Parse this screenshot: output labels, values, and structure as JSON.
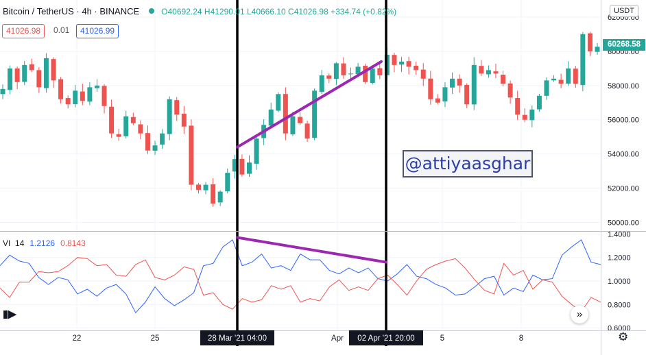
{
  "header": {
    "symbol": "Bitcoin / TetherUS · 4h · BINANCE",
    "open": "O40692.24",
    "high": "H41290.01",
    "low": "L40666.10",
    "close": "C41026.98",
    "change": "+334.74 (+0.82%)"
  },
  "trade": {
    "sell_price": "41026.98",
    "spread": "0.01",
    "buy_price": "41026.99"
  },
  "indicator": {
    "name": "VI",
    "length": "14",
    "vi_plus": "1.2126",
    "vi_minus": "0.8143"
  },
  "currency_label": "USDT",
  "last_price": "60268.58",
  "watermark": "@attiyaasghar",
  "colors": {
    "up": "#26a69a",
    "down": "#ef5350",
    "vi_plus": "#2962ff",
    "vi_minus": "#ef5350",
    "annotation": "#9c27b0",
    "marker": "#000000"
  },
  "chart_data": [
    {
      "type": "candlestick",
      "price_axis": {
        "ticks": [
          "62000.00",
          "60000.00",
          "58000.00",
          "56000.00",
          "54000.00",
          "52000.00",
          "50000.00"
        ],
        "ylim": [
          49500,
          63000
        ]
      },
      "time_axis": {
        "ticks": [
          "22",
          "25",
          "28 Mar '21   04:00",
          "Apr",
          "02 Apr '21   20:00",
          "5",
          "8"
        ]
      },
      "close_path": [
        57800,
        59000,
        58200,
        59200,
        58900,
        57900,
        59600,
        58300,
        57200,
        56900,
        57700,
        57100,
        57900,
        58000,
        56800,
        55200,
        55000,
        56200,
        55800,
        55200,
        54200,
        54500,
        55200,
        57200,
        56300,
        55600,
        52200,
        51900,
        52200,
        51100,
        51800,
        52900,
        53700,
        52800,
        53500,
        54900,
        55700,
        56600,
        57500,
        55200,
        56200,
        55800,
        54900,
        57700,
        58600,
        58400,
        59300,
        58600,
        58700,
        59100,
        58200,
        59000,
        58600,
        59800,
        59200,
        59400,
        59100,
        58900,
        58400,
        57200,
        57000,
        57900,
        58400,
        58000,
        56900,
        59200,
        58700,
        58900,
        58700,
        58100,
        57300,
        56300,
        56000,
        56600,
        57400,
        58300,
        58400,
        58100,
        59000,
        58100,
        61000,
        60000,
        60268
      ],
      "annotations": [
        {
          "type": "trendline",
          "from": [
            "28 Mar '21 04:00",
            54400
          ],
          "to": [
            "02 Apr '21 20:00",
            59400
          ]
        }
      ],
      "markers": [
        "28 Mar '21 04:00",
        "02 Apr '21 20:00"
      ]
    },
    {
      "type": "line",
      "title": "VI 14",
      "y_axis": {
        "ticks": [
          "1.4000",
          "1.2000",
          "1.0000",
          "0.8000",
          "0.6000"
        ],
        "ylim": [
          0.58,
          1.42
        ]
      },
      "series": [
        {
          "name": "VI+",
          "values": [
            1.13,
            1.22,
            1.17,
            1.15,
            1.03,
            0.97,
            1.03,
            1.01,
            0.89,
            0.93,
            0.87,
            0.94,
            0.97,
            0.89,
            0.73,
            0.82,
            0.95,
            0.85,
            0.79,
            0.84,
            0.9,
            1.13,
            1.15,
            1.29,
            1.35,
            1.13,
            1.16,
            1.23,
            1.11,
            1.13,
            1.09,
            1.23,
            1.18,
            1.18,
            1.09,
            1.06,
            1.11,
            1.07,
            1.11,
            1.02,
            1.0,
            1.06,
            1.14,
            1.04,
            1.02,
            0.97,
            0.94,
            0.88,
            0.89,
            0.95,
            1.02,
            1.04,
            0.88,
            0.94,
            0.91,
            1.05,
            1.01,
            1.02,
            1.22,
            1.29,
            1.35,
            1.16,
            1.14
          ]
        },
        {
          "name": "VI-",
          "values": [
            0.94,
            0.86,
            0.99,
            0.99,
            1.08,
            1.07,
            1.08,
            1.13,
            1.2,
            1.19,
            1.13,
            1.14,
            1.05,
            1.04,
            1.14,
            1.18,
            1.03,
            1.01,
            1.05,
            1.12,
            1.1,
            0.88,
            0.9,
            0.8,
            0.76,
            0.85,
            0.82,
            0.84,
            0.96,
            0.93,
            0.96,
            0.82,
            0.85,
            0.83,
            0.95,
            1.01,
            0.92,
            0.95,
            0.92,
            1.02,
            1.05,
            0.97,
            0.88,
            1.0,
            1.1,
            1.14,
            1.17,
            1.19,
            1.11,
            1.01,
            0.92,
            0.89,
            1.15,
            1.05,
            1.09,
            0.93,
            1.01,
            0.99,
            0.87,
            0.8,
            0.74,
            0.86,
            0.82
          ]
        }
      ],
      "annotations": [
        {
          "type": "trendline",
          "from": [
            "28 Mar '21 04:00",
            1.37
          ],
          "to": [
            "02 Apr '21 20:00",
            1.16
          ]
        }
      ]
    }
  ]
}
